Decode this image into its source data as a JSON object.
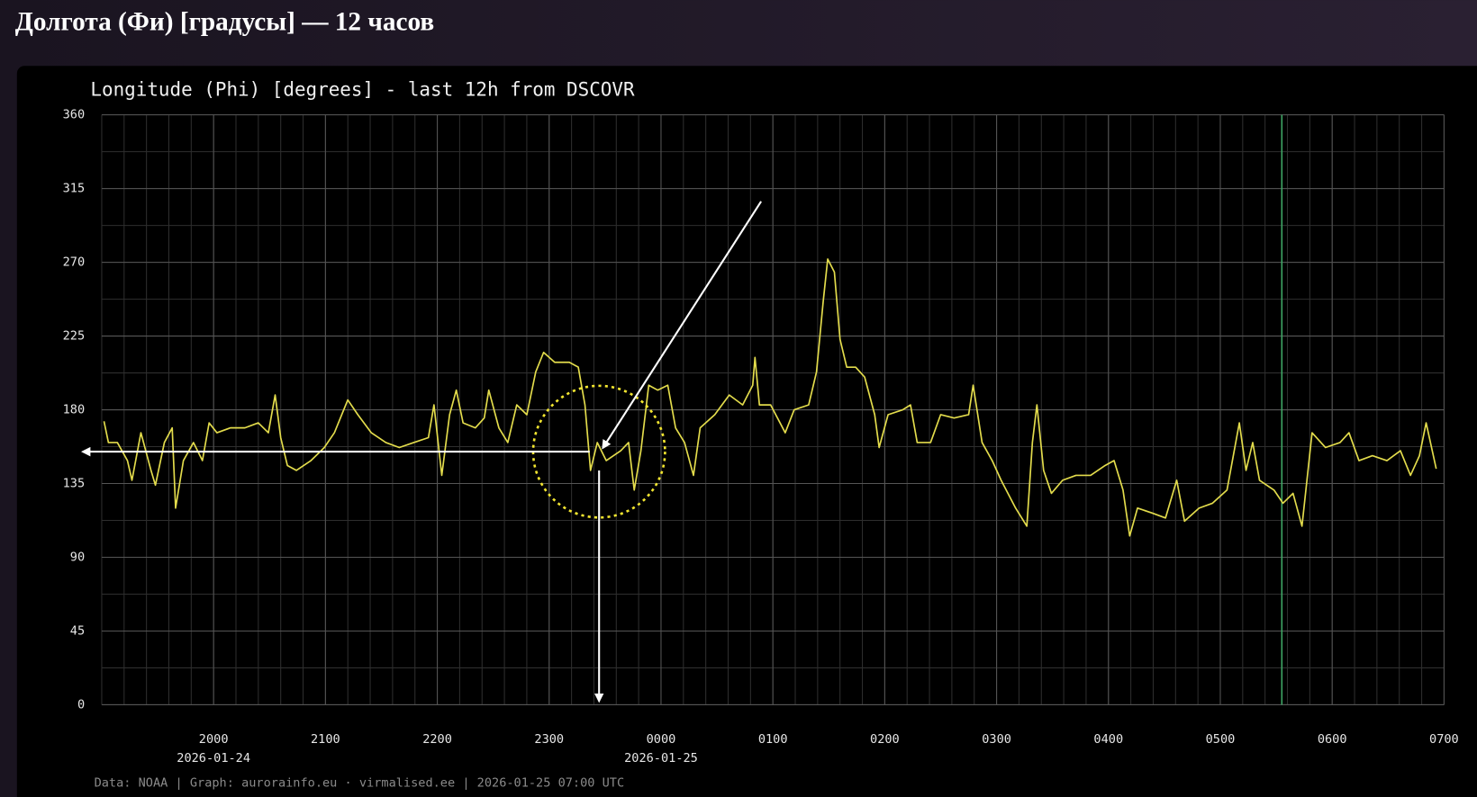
{
  "page_heading": "Долгота (Фи) [градусы] — 12 часов",
  "chart_data": {
    "type": "line",
    "title": "Longitude (Phi) [degrees] - last 12h from DSCOVR",
    "footer": "Data: NOAA | Graph: aurorainfo.eu · virmalised.ee | 2026-01-25 07:00 UTC",
    "xlim": [
      19,
      31
    ],
    "ylim": [
      0,
      360
    ],
    "yticks": [
      0,
      45,
      90,
      135,
      180,
      225,
      270,
      315,
      360
    ],
    "xticks": [
      {
        "value": 20,
        "label": "2000"
      },
      {
        "value": 21,
        "label": "2100"
      },
      {
        "value": 22,
        "label": "2200"
      },
      {
        "value": 23,
        "label": "2300"
      },
      {
        "value": 24,
        "label": "0000"
      },
      {
        "value": 25,
        "label": "0100"
      },
      {
        "value": 26,
        "label": "0200"
      },
      {
        "value": 27,
        "label": "0300"
      },
      {
        "value": 28,
        "label": "0400"
      },
      {
        "value": 29,
        "label": "0500"
      },
      {
        "value": 30,
        "label": "0600"
      },
      {
        "value": 31,
        "label": "0700"
      }
    ],
    "xdate_labels": [
      {
        "value": 20,
        "label": "2026-01-24"
      },
      {
        "value": 24,
        "label": "2026-01-25"
      }
    ],
    "grid": true,
    "x_minor_step": 0.2,
    "y_minor_step": 22.5,
    "vline": {
      "x": 29.55,
      "color": "#3fa866"
    },
    "series": [
      {
        "name": "Phi",
        "color": "#e3dc4c",
        "x": [
          19.02,
          19.06,
          19.14,
          19.23,
          19.27,
          19.35,
          19.44,
          19.48,
          19.56,
          19.63,
          19.66,
          19.73,
          19.82,
          19.9,
          19.96,
          20.03,
          20.15,
          20.28,
          20.4,
          20.49,
          20.55,
          20.6,
          20.66,
          20.74,
          20.87,
          20.99,
          21.08,
          21.2,
          21.29,
          21.41,
          21.54,
          21.66,
          21.79,
          21.92,
          21.97,
          22.04,
          22.11,
          22.17,
          22.23,
          22.34,
          22.42,
          22.46,
          22.55,
          22.63,
          22.71,
          22.8,
          22.88,
          22.95,
          23.05,
          23.18,
          23.26,
          23.32,
          23.37,
          23.43,
          23.51,
          23.64,
          23.71,
          23.76,
          23.82,
          23.89,
          23.97,
          24.06,
          24.13,
          24.21,
          24.29,
          24.35,
          24.48,
          24.61,
          24.73,
          24.82,
          24.84,
          24.88,
          24.98,
          25.11,
          25.19,
          25.32,
          25.39,
          25.45,
          25.49,
          25.55,
          25.6,
          25.66,
          25.74,
          25.82,
          25.91,
          25.95,
          26.03,
          26.16,
          26.23,
          26.29,
          26.41,
          26.5,
          26.62,
          26.75,
          26.79,
          26.87,
          26.96,
          27.04,
          27.17,
          27.27,
          27.32,
          27.36,
          27.42,
          27.49,
          27.59,
          27.71,
          27.84,
          27.97,
          28.05,
          28.13,
          28.19,
          28.26,
          28.39,
          28.51,
          28.61,
          28.68,
          28.81,
          28.93,
          29.06,
          29.17,
          29.23,
          29.29,
          29.35,
          29.48,
          29.56,
          29.65,
          29.73,
          29.82,
          29.94,
          30.07,
          30.15,
          30.24,
          30.36,
          30.49,
          30.61,
          30.7,
          30.78,
          30.84,
          30.93
        ],
        "values": [
          173,
          160,
          160,
          149,
          137,
          166,
          143,
          134,
          160,
          169,
          120,
          149,
          160,
          149,
          172,
          166,
          169,
          169,
          172,
          166,
          189,
          163,
          146,
          143,
          149,
          157,
          166,
          186,
          177,
          166,
          160,
          157,
          160,
          163,
          183,
          140,
          177,
          192,
          172,
          169,
          175,
          192,
          169,
          160,
          183,
          177,
          203,
          215,
          209,
          209,
          206,
          183,
          143,
          160,
          149,
          155,
          160,
          131,
          155,
          195,
          192,
          195,
          169,
          160,
          140,
          169,
          177,
          189,
          183,
          195,
          212,
          183,
          183,
          166,
          180,
          183,
          203,
          246,
          272,
          264,
          223,
          206,
          206,
          200,
          177,
          157,
          177,
          180,
          183,
          160,
          160,
          177,
          175,
          177,
          195,
          160,
          149,
          137,
          120,
          109,
          160,
          183,
          143,
          129,
          137,
          140,
          140,
          146,
          149,
          131,
          103,
          120,
          117,
          114,
          137,
          112,
          120,
          123,
          131,
          172,
          143,
          160,
          137,
          131,
          123,
          129,
          109,
          166,
          157,
          160,
          166,
          149,
          152,
          149,
          155,
          140,
          152,
          172,
          144
        ]
      }
    ]
  }
}
